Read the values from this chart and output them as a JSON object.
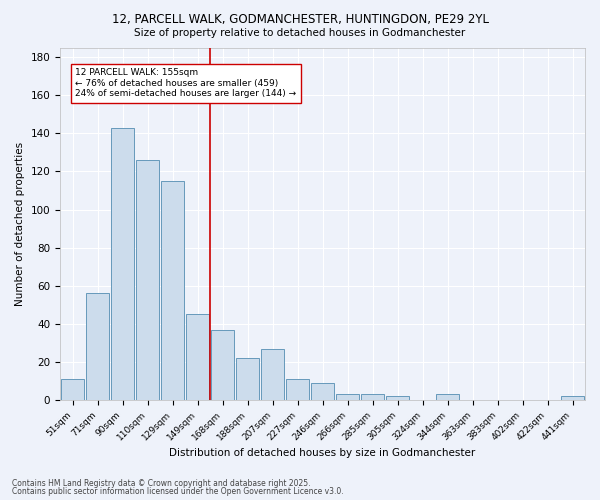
{
  "title1": "12, PARCELL WALK, GODMANCHESTER, HUNTINGDON, PE29 2YL",
  "title2": "Size of property relative to detached houses in Godmanchester",
  "xlabel": "Distribution of detached houses by size in Godmanchester",
  "ylabel": "Number of detached properties",
  "bar_color": "#ccdcec",
  "bar_edge_color": "#6699bb",
  "background_color": "#eef2fa",
  "grid_color": "#ffffff",
  "categories": [
    "51sqm",
    "71sqm",
    "90sqm",
    "110sqm",
    "129sqm",
    "149sqm",
    "168sqm",
    "188sqm",
    "207sqm",
    "227sqm",
    "246sqm",
    "266sqm",
    "285sqm",
    "305sqm",
    "324sqm",
    "344sqm",
    "363sqm",
    "383sqm",
    "402sqm",
    "422sqm",
    "441sqm"
  ],
  "values": [
    11,
    56,
    143,
    126,
    115,
    45,
    37,
    22,
    27,
    11,
    9,
    3,
    3,
    2,
    0,
    3,
    0,
    0,
    0,
    0,
    2
  ],
  "vline_x": 5.5,
  "vline_color": "#cc0000",
  "annotation_text": "12 PARCELL WALK: 155sqm\n← 76% of detached houses are smaller (459)\n24% of semi-detached houses are larger (144) →",
  "annotation_box_color": "#ffffff",
  "annotation_box_edge": "#cc0000",
  "footer1": "Contains HM Land Registry data © Crown copyright and database right 2025.",
  "footer2": "Contains public sector information licensed under the Open Government Licence v3.0.",
  "ylim": [
    0,
    185
  ],
  "yticks": [
    0,
    20,
    40,
    60,
    80,
    100,
    120,
    140,
    160,
    180
  ]
}
